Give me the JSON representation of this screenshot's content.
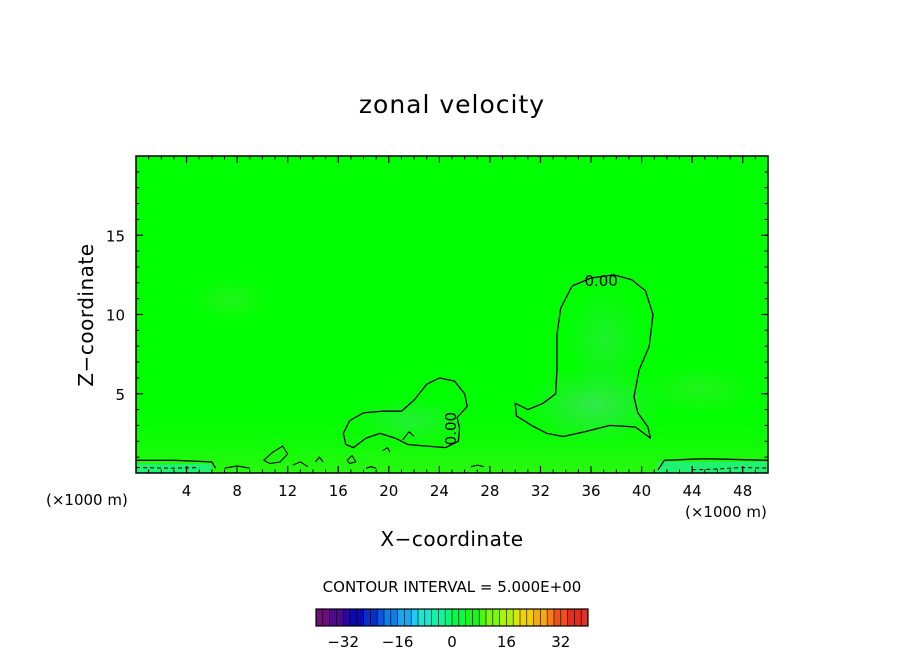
{
  "chart_data": {
    "type": "heatmap",
    "title": "zonal velocity",
    "xlabel": "X−coordinate",
    "ylabel": "Z−coordinate",
    "x_unit_label": "(×1000 m)",
    "y_unit_label": "(×1000 m)",
    "xlim": [
      0,
      50
    ],
    "ylim": [
      0,
      20
    ],
    "x_ticks": [
      4,
      8,
      12,
      16,
      20,
      24,
      28,
      32,
      36,
      40,
      44,
      48
    ],
    "x_tick_labels": [
      "4",
      "8",
      "12",
      "16",
      "20",
      "24",
      "28",
      "32",
      "36",
      "40",
      "44",
      "48"
    ],
    "y_ticks": [
      5,
      10,
      15
    ],
    "y_tick_labels": [
      "5",
      "10",
      "15"
    ],
    "background_value": 0,
    "contour_interval_text": "CONTOUR INTERVAL = 5.000E+00",
    "contour_labels": [
      {
        "text": "0.00",
        "x": 36.8,
        "y": 11.8
      },
      {
        "text": "0.00",
        "x": 25.3,
        "y": 2.8
      }
    ],
    "zero_contours": [
      {
        "name": "east-cell",
        "points": [
          [
            31.0,
            4.0
          ],
          [
            30.0,
            4.4
          ],
          [
            30.1,
            3.6
          ],
          [
            31.3,
            3.0
          ],
          [
            32.5,
            2.5
          ],
          [
            33.8,
            2.3
          ],
          [
            35.5,
            2.6
          ],
          [
            37.5,
            3.0
          ],
          [
            39.5,
            2.9
          ],
          [
            40.7,
            2.2
          ],
          [
            40.5,
            2.9
          ],
          [
            39.7,
            3.8
          ],
          [
            39.4,
            4.8
          ],
          [
            39.8,
            6.5
          ],
          [
            40.6,
            8.0
          ],
          [
            40.9,
            10.0
          ],
          [
            40.3,
            11.5
          ],
          [
            39.2,
            12.2
          ],
          [
            37.8,
            12.5
          ],
          [
            36.0,
            12.3
          ],
          [
            34.5,
            11.8
          ],
          [
            33.6,
            10.4
          ],
          [
            33.3,
            8.7
          ],
          [
            33.3,
            6.5
          ],
          [
            33.2,
            5.0
          ],
          [
            32.2,
            4.4
          ],
          [
            31.0,
            4.0
          ]
        ]
      },
      {
        "name": "west-cell",
        "points": [
          [
            16.6,
            1.8
          ],
          [
            16.4,
            2.5
          ],
          [
            16.9,
            3.3
          ],
          [
            18.0,
            3.8
          ],
          [
            19.5,
            3.9
          ],
          [
            21.0,
            3.9
          ],
          [
            22.0,
            4.6
          ],
          [
            23.0,
            5.6
          ],
          [
            24.0,
            6.0
          ],
          [
            25.2,
            5.8
          ],
          [
            26.0,
            5.0
          ],
          [
            26.2,
            4.2
          ],
          [
            25.4,
            3.5
          ],
          [
            25.6,
            2.8
          ],
          [
            25.5,
            2.0
          ],
          [
            24.5,
            1.6
          ],
          [
            23.0,
            1.7
          ],
          [
            21.5,
            1.8
          ],
          [
            20.5,
            2.2
          ],
          [
            19.3,
            2.5
          ],
          [
            18.2,
            2.2
          ],
          [
            17.2,
            1.6
          ],
          [
            16.6,
            1.8
          ]
        ]
      },
      {
        "name": "surface-band-west",
        "points": [
          [
            0,
            0.8
          ],
          [
            3,
            0.8
          ],
          [
            6,
            0.7
          ],
          [
            6.3,
            0.3
          ]
        ]
      },
      {
        "name": "surface-band-east",
        "points": [
          [
            41.3,
            0.2
          ],
          [
            41.8,
            0.8
          ],
          [
            45,
            0.9
          ],
          [
            50,
            0.8
          ]
        ]
      }
    ],
    "small_contours": [
      {
        "points": [
          [
            10.1,
            0.8
          ],
          [
            10.8,
            1.3
          ],
          [
            11.6,
            1.7
          ],
          [
            12.0,
            1.2
          ],
          [
            11.4,
            0.7
          ],
          [
            10.6,
            0.6
          ],
          [
            10.1,
            0.8
          ]
        ]
      },
      {
        "points": [
          [
            12.4,
            0.5
          ],
          [
            13.0,
            0.7
          ],
          [
            13.6,
            0.4
          ]
        ]
      },
      {
        "points": [
          [
            14.2,
            0.7
          ],
          [
            14.5,
            1.0
          ],
          [
            14.8,
            0.7
          ]
        ]
      },
      {
        "points": [
          [
            16.7,
            0.8
          ],
          [
            17.1,
            1.1
          ],
          [
            17.4,
            0.7
          ],
          [
            16.9,
            0.6
          ],
          [
            16.7,
            0.8
          ]
        ]
      },
      {
        "points": [
          [
            19.5,
            1.4
          ],
          [
            19.9,
            1.6
          ],
          [
            20.1,
            1.3
          ]
        ]
      },
      {
        "points": [
          [
            21.1,
            2.1
          ],
          [
            21.6,
            2.6
          ],
          [
            22.0,
            2.3
          ]
        ]
      },
      {
        "points": [
          [
            7.0,
            0.3
          ],
          [
            8.0,
            0.45
          ],
          [
            9.0,
            0.3
          ]
        ]
      },
      {
        "points": [
          [
            18.2,
            0.3
          ],
          [
            18.6,
            0.4
          ],
          [
            19.0,
            0.3
          ]
        ]
      },
      {
        "points": [
          [
            26.5,
            0.4
          ],
          [
            27.0,
            0.5
          ],
          [
            27.5,
            0.4
          ]
        ]
      }
    ],
    "negative_contours": [
      {
        "points": [
          [
            0,
            0.35
          ],
          [
            3,
            0.3
          ],
          [
            5,
            0.35
          ]
        ]
      },
      {
        "points": [
          [
            44,
            0.2
          ],
          [
            46,
            0.25
          ],
          [
            48,
            0.35
          ],
          [
            50,
            0.3
          ]
        ]
      }
    ],
    "colorbar": {
      "min": -40,
      "max": 40,
      "tick_values": [
        -32,
        -16,
        0,
        16,
        32
      ],
      "tick_labels": [
        "−32",
        "−16",
        "0",
        "16",
        "32"
      ],
      "colors": [
        "#6e0f7a",
        "#4c0a8c",
        "#2a059e",
        "#0a0ab5",
        "#0b2ec8",
        "#0d55da",
        "#0f7ee8",
        "#1aa6f0",
        "#22c9f0",
        "#1ee6cf",
        "#14f2a3",
        "#0cf774",
        "#0af945",
        "#1cf320",
        "#4ef415",
        "#7ef70f",
        "#aef20c",
        "#d8e80b",
        "#f2cf0d",
        "#f7a912",
        "#f57d17",
        "#ee521b",
        "#e32d1e",
        "#d8332e"
      ]
    }
  }
}
